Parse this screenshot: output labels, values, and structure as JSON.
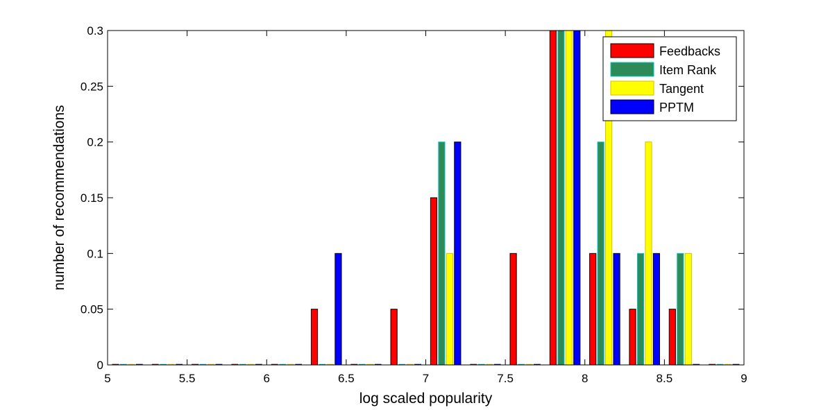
{
  "chart_data": {
    "type": "bar",
    "xlabel": "log scaled popularity",
    "ylabel": "number of recommendations",
    "xlim": [
      5,
      9
    ],
    "ylim": [
      0,
      0.3
    ],
    "xticks": [
      "5",
      "5.5",
      "6",
      "6.5",
      "7",
      "7.5",
      "8",
      "8.5",
      "9"
    ],
    "yticks": [
      "0",
      "0.05",
      "0.1",
      "0.15",
      "0.2",
      "0.25",
      "0.3"
    ],
    "bin_centers": [
      5.125,
      5.375,
      5.625,
      5.875,
      6.125,
      6.375,
      6.625,
      6.875,
      7.125,
      7.375,
      7.625,
      7.875,
      8.125,
      8.375,
      8.625,
      8.875
    ],
    "legend_position": "top-right",
    "series": [
      {
        "name": "Feedbacks",
        "color": "#ff0000",
        "values": [
          0,
          0,
          0,
          0,
          0,
          0.05,
          0,
          0.05,
          0.15,
          0,
          0.1,
          0.3,
          0.1,
          0.05,
          0.05,
          0
        ]
      },
      {
        "name": "Item Rank",
        "color": "#2e8b57",
        "edge": "#00c8c8",
        "values": [
          0,
          0,
          0,
          0,
          0,
          0,
          0,
          0,
          0.2,
          0,
          0,
          0.3,
          0.2,
          0.1,
          0.1,
          0
        ]
      },
      {
        "name": "Tangent",
        "color": "#ffff00",
        "edge": "#d4c000",
        "values": [
          0,
          0,
          0,
          0,
          0,
          0,
          0,
          0,
          0.1,
          0,
          0,
          0.3,
          0.3,
          0.2,
          0.1,
          0
        ]
      },
      {
        "name": "PPTM",
        "color": "#0000ff",
        "values": [
          0,
          0,
          0,
          0,
          0,
          0.1,
          0,
          0,
          0.2,
          0,
          0,
          0.3,
          0.1,
          0.1,
          0,
          0
        ]
      }
    ]
  }
}
